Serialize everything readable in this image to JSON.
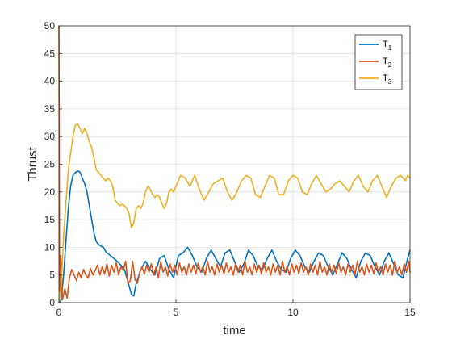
{
  "chart_data": {
    "type": "line",
    "title": "",
    "xlabel": "time",
    "ylabel": "Thrust",
    "xlim": [
      0,
      15
    ],
    "ylim": [
      0,
      50
    ],
    "xticks": [
      0,
      5,
      10,
      15
    ],
    "yticks": [
      0,
      5,
      10,
      15,
      20,
      25,
      30,
      35,
      40,
      45,
      50
    ],
    "grid": true,
    "legend_position": "top-right",
    "series": [
      {
        "name": "T",
        "name_subscript": "1",
        "color": "#0072BD",
        "x": [
          0,
          0.1,
          0.2,
          0.3,
          0.4,
          0.5,
          0.6,
          0.7,
          0.8,
          0.9,
          1.0,
          1.1,
          1.2,
          1.3,
          1.4,
          1.5,
          1.6,
          1.7,
          1.8,
          1.9,
          2.0,
          2.2,
          2.4,
          2.6,
          2.8,
          3.0,
          3.1,
          3.2,
          3.3,
          3.5,
          3.7,
          3.9,
          4.1,
          4.3,
          4.5,
          4.7,
          4.9,
          5.1,
          5.3,
          5.5,
          5.7,
          5.9,
          6.1,
          6.3,
          6.5,
          6.7,
          6.9,
          7.1,
          7.3,
          7.5,
          7.7,
          7.9,
          8.1,
          8.3,
          8.5,
          8.7,
          8.9,
          9.1,
          9.3,
          9.5,
          9.7,
          9.9,
          10.1,
          10.3,
          10.5,
          10.7,
          10.9,
          11.1,
          11.3,
          11.5,
          11.7,
          11.9,
          12.1,
          12.3,
          12.5,
          12.7,
          12.9,
          13.1,
          13.3,
          13.5,
          13.7,
          13.9,
          14.1,
          14.3,
          14.5,
          14.7,
          14.9,
          15.0
        ],
        "y": [
          0,
          0.5,
          5,
          11,
          17,
          21,
          23,
          23.5,
          23.8,
          23.6,
          22.5,
          21.5,
          20,
          17.5,
          15,
          12.5,
          11,
          10.5,
          10.2,
          10,
          9.2,
          8.5,
          7.8,
          7,
          6,
          3,
          1.5,
          1.2,
          3.5,
          6,
          7.5,
          6,
          5,
          8,
          8.5,
          6,
          4.5,
          8.5,
          9,
          10,
          8.5,
          6.5,
          5.5,
          8,
          9.5,
          8,
          6.5,
          9,
          9.5,
          7.5,
          5.5,
          7,
          9.5,
          8.5,
          6.5,
          6,
          8,
          9.5,
          7.5,
          6,
          5.5,
          8,
          9.5,
          8.5,
          6.5,
          5.5,
          7.5,
          9,
          8.5,
          6.5,
          5,
          7,
          9,
          8,
          6,
          4.5,
          7.5,
          9,
          8.5,
          6.5,
          5,
          7.5,
          9,
          7,
          5,
          4.5,
          8,
          9.5
        ]
      },
      {
        "name": "T",
        "name_subscript": "2",
        "color": "#D95319",
        "x": [
          0,
          0.03,
          0.08,
          0.15,
          0.25,
          0.35,
          0.45,
          0.55,
          0.65,
          0.75,
          0.85,
          0.95,
          1.05,
          1.15,
          1.25,
          1.35,
          1.45,
          1.55,
          1.65,
          1.75,
          1.85,
          1.95,
          2.05,
          2.15,
          2.25,
          2.35,
          2.45,
          2.55,
          2.65,
          2.75,
          2.85,
          2.95,
          3.05,
          3.15,
          3.25,
          3.35,
          3.45,
          3.55,
          3.65,
          3.75,
          3.85,
          3.95,
          4.05,
          4.15,
          4.25,
          4.35,
          4.45,
          4.55,
          4.65,
          4.75,
          4.85,
          4.95,
          5.05,
          5.15,
          5.25,
          5.35,
          5.45,
          5.55,
          5.65,
          5.75,
          5.85,
          5.95,
          6.05,
          6.15,
          6.25,
          6.35,
          6.45,
          6.55,
          6.65,
          6.75,
          6.85,
          6.95,
          7.05,
          7.15,
          7.25,
          7.35,
          7.45,
          7.55,
          7.65,
          7.75,
          7.85,
          7.95,
          8.05,
          8.15,
          8.25,
          8.35,
          8.45,
          8.55,
          8.65,
          8.75,
          8.85,
          8.95,
          9.05,
          9.15,
          9.25,
          9.35,
          9.45,
          9.55,
          9.65,
          9.75,
          9.85,
          9.95,
          10.05,
          10.15,
          10.25,
          10.35,
          10.45,
          10.55,
          10.65,
          10.75,
          10.85,
          10.95,
          11.05,
          11.15,
          11.25,
          11.35,
          11.45,
          11.55,
          11.65,
          11.75,
          11.85,
          11.95,
          12.05,
          12.15,
          12.25,
          12.35,
          12.45,
          12.55,
          12.65,
          12.75,
          12.85,
          12.95,
          13.05,
          13.15,
          13.25,
          13.35,
          13.45,
          13.55,
          13.65,
          13.75,
          13.85,
          13.95,
          14.05,
          14.15,
          14.25,
          14.35,
          14.45,
          14.55,
          14.65,
          14.75,
          14.85,
          14.95,
          15.0
        ],
        "y": [
          50,
          2,
          8.5,
          0.5,
          2.5,
          0.8,
          4.5,
          6,
          5,
          4,
          5.5,
          4.5,
          6,
          5,
          4.5,
          6.2,
          5,
          5.8,
          6.8,
          5,
          6.5,
          5.2,
          7,
          4.8,
          6.8,
          5.5,
          7.2,
          5,
          6.5,
          5.8,
          7.5,
          3.5,
          4,
          7.5,
          4.2,
          3.5,
          5.5,
          6.5,
          5.2,
          6.8,
          5.5,
          7,
          5,
          6.5,
          4.5,
          7.5,
          5.5,
          6.5,
          4.8,
          7,
          5.5,
          6.8,
          5,
          7.2,
          5.5,
          6.5,
          5,
          7,
          5.5,
          6.8,
          5.2,
          7.2,
          5.5,
          6.5,
          5,
          7.5,
          5.5,
          6.5,
          5,
          7,
          5.5,
          6.8,
          5.2,
          7.2,
          5.5,
          6.5,
          5,
          7,
          5.5,
          6.8,
          5,
          7.5,
          5.5,
          6.5,
          5,
          7,
          5.5,
          6.8,
          5.2,
          7.2,
          5.5,
          6.5,
          5,
          7,
          5.5,
          6.8,
          5,
          7.5,
          5.5,
          6.5,
          5,
          7,
          5.5,
          6.8,
          5.2,
          7.2,
          5.5,
          6.5,
          5,
          7,
          5.5,
          6.8,
          5,
          7.5,
          5.5,
          6.5,
          5,
          7,
          5.5,
          6.8,
          5.2,
          7.2,
          5.5,
          6.5,
          5,
          7,
          5.5,
          6.8,
          5,
          7.5,
          5.5,
          6.5,
          5,
          7,
          5.5,
          6.8,
          5.2,
          7.2,
          5.5,
          6.5,
          5,
          7,
          5.5,
          6.8,
          5,
          7.5,
          5.5,
          6.5,
          5,
          7,
          5.5,
          7.5,
          5.5
        ]
      },
      {
        "name": "T",
        "name_subscript": "3",
        "color": "#EDB120",
        "x": [
          0,
          0.1,
          0.2,
          0.3,
          0.4,
          0.5,
          0.6,
          0.7,
          0.8,
          0.9,
          1.0,
          1.1,
          1.2,
          1.3,
          1.4,
          1.5,
          1.6,
          1.7,
          1.8,
          1.9,
          2.0,
          2.1,
          2.2,
          2.3,
          2.4,
          2.5,
          2.6,
          2.7,
          2.8,
          2.9,
          3.0,
          3.1,
          3.2,
          3.3,
          3.4,
          3.5,
          3.6,
          3.7,
          3.8,
          3.9,
          4.0,
          4.1,
          4.2,
          4.3,
          4.4,
          4.5,
          4.6,
          4.7,
          4.8,
          4.9,
          5.0,
          5.2,
          5.4,
          5.6,
          5.8,
          6.0,
          6.2,
          6.4,
          6.6,
          6.8,
          7.0,
          7.2,
          7.4,
          7.6,
          7.8,
          8.0,
          8.2,
          8.4,
          8.6,
          8.8,
          9.0,
          9.2,
          9.4,
          9.6,
          9.8,
          10.0,
          10.2,
          10.4,
          10.6,
          10.8,
          11.0,
          11.2,
          11.4,
          11.6,
          11.8,
          12.0,
          12.2,
          12.4,
          12.6,
          12.8,
          13.0,
          13.2,
          13.4,
          13.6,
          13.8,
          14.0,
          14.2,
          14.4,
          14.6,
          14.8,
          14.9,
          15.0
        ],
        "y": [
          0,
          3,
          12,
          18,
          24,
          27,
          30,
          32,
          32.3,
          31.5,
          30.5,
          31.5,
          30.5,
          29,
          28,
          26,
          24,
          23.5,
          23,
          22.5,
          22,
          22.5,
          22,
          21,
          18.5,
          18,
          17.5,
          17.8,
          17.5,
          17,
          16,
          13.5,
          14.5,
          17,
          17.5,
          17,
          18,
          20,
          21,
          20.5,
          19.5,
          19,
          19.5,
          19,
          18,
          17,
          18,
          20,
          20.5,
          20,
          21,
          23,
          22.5,
          21,
          23,
          20.5,
          18.5,
          20,
          21.5,
          22,
          22.5,
          20,
          18.5,
          20,
          22,
          23,
          22.5,
          19.5,
          19,
          21,
          23,
          22.5,
          19.5,
          19.5,
          22,
          23,
          22.5,
          20,
          19.5,
          21.5,
          23,
          21.5,
          20,
          20.5,
          21.5,
          22,
          21,
          20,
          22,
          23,
          21,
          20,
          22,
          23,
          21,
          19,
          21,
          22.5,
          23,
          22,
          23,
          22.5
        ]
      }
    ]
  }
}
